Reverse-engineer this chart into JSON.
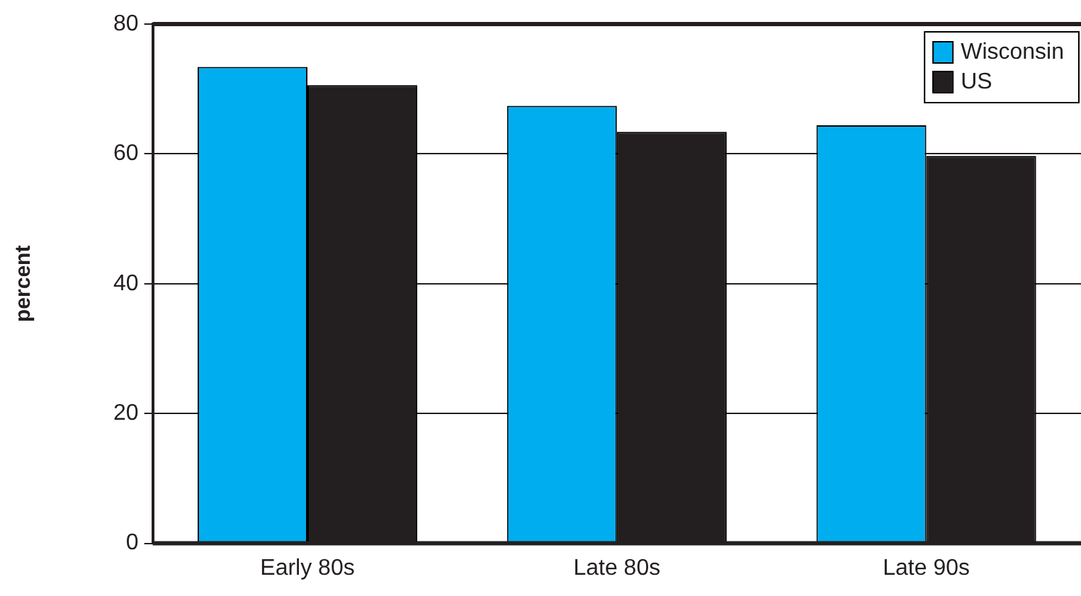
{
  "chart_data": {
    "type": "bar",
    "ylabel": "percent",
    "categories": [
      "Early 80s",
      "Late 80s",
      "Late 90s"
    ],
    "series": [
      {
        "name": "Wisconsin",
        "color": "#00aeef",
        "values": [
          73.4,
          67.4,
          64.4
        ]
      },
      {
        "name": "US",
        "color": "#231f20",
        "values": [
          70.6,
          63.4,
          59.7
        ]
      }
    ],
    "ylim": [
      0,
      80
    ],
    "yticks": [
      0,
      20,
      40,
      60,
      80
    ],
    "grid": "y",
    "legend": "top right"
  }
}
